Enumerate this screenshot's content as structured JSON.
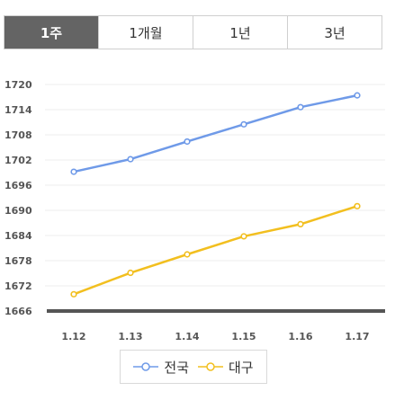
{
  "tabs": [
    {
      "label": "1주",
      "active": true
    },
    {
      "label": "1개월",
      "active": false
    },
    {
      "label": "1년",
      "active": false
    },
    {
      "label": "3년",
      "active": false
    }
  ],
  "chart_data": {
    "type": "line",
    "x": [
      "1.12",
      "1.13",
      "1.14",
      "1.15",
      "1.16",
      "1.17"
    ],
    "ylim": [
      1666,
      1720
    ],
    "yticks": [
      1666,
      1672,
      1678,
      1684,
      1690,
      1696,
      1702,
      1708,
      1714,
      1720
    ],
    "grid": true,
    "legend_position": "bottom",
    "series": [
      {
        "name": "전국",
        "color": "#6f9ae8",
        "values": [
          1699.2,
          1702.2,
          1706.4,
          1710.5,
          1714.6,
          1717.4
        ]
      },
      {
        "name": "대구",
        "color": "#f2bf1f",
        "values": [
          1670.0,
          1675.1,
          1679.5,
          1683.8,
          1686.7,
          1691.0
        ]
      }
    ]
  }
}
